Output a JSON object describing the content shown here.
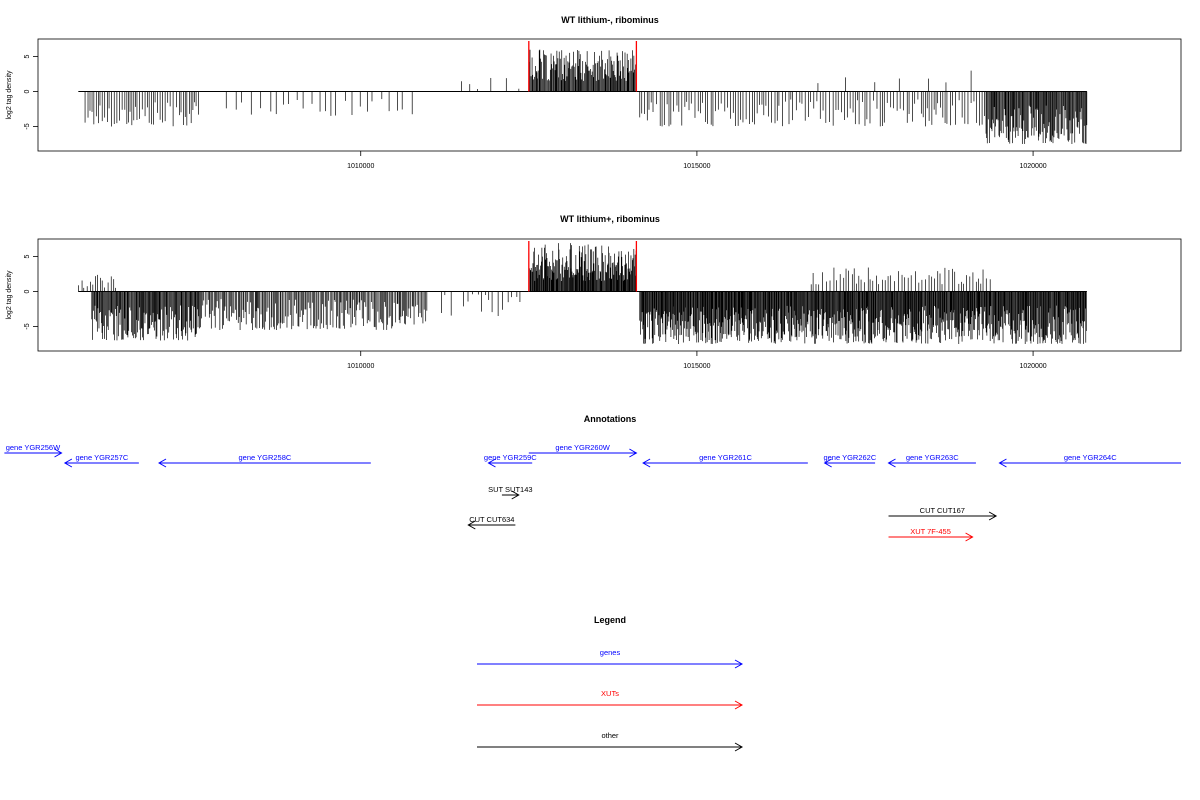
{
  "chart_data": [
    {
      "type": "bar",
      "title": "WT lithium-, ribominus",
      "ylabel": "log2 tag density",
      "xlim": [
        1005200,
        1022200
      ],
      "ylim": [
        -8.5,
        7.5
      ],
      "xticks": [
        1010000,
        1015000,
        1020000
      ],
      "xtick_labels": [
        "1010000",
        "1015000",
        "1020000"
      ],
      "yticks": [
        -5,
        0,
        5
      ],
      "ytick_labels": [
        "-5",
        "0",
        "5"
      ],
      "baseline_range": [
        1005800,
        1020800
      ],
      "red_lines": [
        1012500,
        1014100
      ],
      "regions": [
        {
          "from": 1005900,
          "to": 1007600,
          "min": -5.0,
          "max": -1.5,
          "step": 35,
          "sign": -1
        },
        {
          "from": 1008000,
          "to": 1010800,
          "min": -3.5,
          "max": -1.0,
          "step": 110,
          "sign": -1
        },
        {
          "from": 1011500,
          "to": 1012400,
          "min": -2.0,
          "max": 1.5,
          "step": 180,
          "sign": 1
        },
        {
          "from": 1012500,
          "to": 1014100,
          "min": 1.5,
          "max": 6.0,
          "step": 12,
          "sign": 1
        },
        {
          "from": 1014150,
          "to": 1019300,
          "min": -5.0,
          "max": -1.0,
          "step": 40,
          "sign": -1
        },
        {
          "from": 1019300,
          "to": 1020800,
          "min": -7.5,
          "max": -2.0,
          "step": 12,
          "sign": -1
        },
        {
          "from": 1016800,
          "to": 1019500,
          "min": 1.0,
          "max": 3.0,
          "step": 350,
          "sign": 1
        }
      ]
    },
    {
      "type": "bar",
      "title": "WT lithium+, ribominus",
      "ylabel": "log2 tag density",
      "xlim": [
        1005200,
        1022200
      ],
      "ylim": [
        -8.5,
        7.5
      ],
      "xticks": [
        1010000,
        1015000,
        1020000
      ],
      "xtick_labels": [
        "1010000",
        "1015000",
        "1020000"
      ],
      "yticks": [
        -5,
        0,
        5
      ],
      "ytick_labels": [
        "-5",
        "0",
        "5"
      ],
      "baseline_range": [
        1005800,
        1020800
      ],
      "red_lines": [
        1012500,
        1014100
      ],
      "regions": [
        {
          "from": 1005800,
          "to": 1006400,
          "min": 0.5,
          "max": 2.5,
          "step": 40,
          "sign": 1
        },
        {
          "from": 1006000,
          "to": 1007600,
          "min": -7.0,
          "max": -2.0,
          "step": 12,
          "sign": -1
        },
        {
          "from": 1007600,
          "to": 1011000,
          "min": -5.5,
          "max": -1.0,
          "step": 18,
          "sign": -1
        },
        {
          "from": 1011200,
          "to": 1012400,
          "min": -3.5,
          "max": 1.5,
          "step": 70,
          "sign": -1
        },
        {
          "from": 1012500,
          "to": 1014100,
          "min": 1.5,
          "max": 7.0,
          "step": 10,
          "sign": 1
        },
        {
          "from": 1014150,
          "to": 1020800,
          "min": -7.5,
          "max": -2.0,
          "step": 10,
          "sign": -1
        },
        {
          "from": 1016700,
          "to": 1019400,
          "min": 1.0,
          "max": 3.5,
          "step": 45,
          "sign": 1
        }
      ]
    }
  ],
  "annotations": {
    "title": "Annotations",
    "items": [
      {
        "label": "gene YGR256W",
        "start": 1004700,
        "end": 1005550,
        "dir": 1,
        "row": 0,
        "kind": "gene"
      },
      {
        "label": "gene YGR257C",
        "start": 1005600,
        "end": 1006700,
        "dir": -1,
        "row": 1,
        "kind": "gene"
      },
      {
        "label": "gene YGR258C",
        "start": 1007000,
        "end": 1010150,
        "dir": -1,
        "row": 1,
        "kind": "gene"
      },
      {
        "label": "gene YGR259C",
        "start": 1011900,
        "end": 1012550,
        "dir": -1,
        "row": 1,
        "kind": "gene"
      },
      {
        "label": "gene YGR260W",
        "start": 1012500,
        "end": 1014100,
        "dir": 1,
        "row": 0,
        "kind": "gene"
      },
      {
        "label": "gene YGR261C",
        "start": 1014200,
        "end": 1016650,
        "dir": -1,
        "row": 1,
        "kind": "gene"
      },
      {
        "label": "gene YGR262C",
        "start": 1016900,
        "end": 1017650,
        "dir": -1,
        "row": 1,
        "kind": "gene"
      },
      {
        "label": "gene YGR263C",
        "start": 1017850,
        "end": 1019150,
        "dir": -1,
        "row": 1,
        "kind": "gene"
      },
      {
        "label": "gene YGR264C",
        "start": 1019500,
        "end": 1022200,
        "dir": -1,
        "row": 1,
        "kind": "gene"
      },
      {
        "label": "SUT SUT143",
        "start": 1012100,
        "end": 1012350,
        "dir": 1,
        "row": 2,
        "kind": "other"
      },
      {
        "label": "CUT CUT634",
        "start": 1011600,
        "end": 1012300,
        "dir": -1,
        "row": 3,
        "kind": "other"
      },
      {
        "label": "CUT CUT167",
        "start": 1017850,
        "end": 1019450,
        "dir": 1,
        "row": 4,
        "kind": "other"
      },
      {
        "label": "XUT 7F-455",
        "start": 1017850,
        "end": 1019100,
        "dir": 1,
        "row": 5,
        "kind": "xut"
      }
    ]
  },
  "legend": {
    "title": "Legend",
    "items": [
      {
        "label": "genes",
        "kind": "gene"
      },
      {
        "label": "XUTs",
        "kind": "xut"
      },
      {
        "label": "other",
        "kind": "other"
      }
    ]
  },
  "colors": {
    "gene": "#0000ff",
    "xut": "#ff0000",
    "other": "#000000",
    "marker": "#ff0000"
  }
}
